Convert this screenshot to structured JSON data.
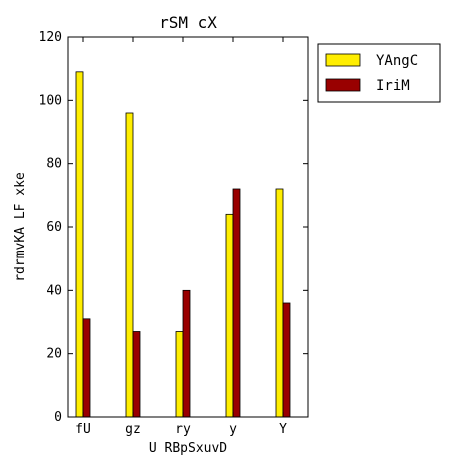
{
  "chart_data": {
    "type": "bar",
    "title": "rSM cX",
    "xlabel": "U RBpSxuvD",
    "ylabel": "rdrmvKA LF xke",
    "categories": [
      "fU",
      "gz",
      "ry",
      "y",
      "Y"
    ],
    "ylim": [
      0,
      120
    ],
    "yticks": [
      0,
      20,
      40,
      60,
      80,
      100,
      120
    ],
    "grid": false,
    "legend_position": "top-right",
    "series": [
      {
        "name": "YAngC",
        "color": "#ffee00",
        "values": [
          109,
          96,
          27,
          64,
          72
        ]
      },
      {
        "name": "IriM",
        "color": "#990000",
        "values": [
          31,
          27,
          40,
          72,
          36
        ]
      }
    ]
  }
}
